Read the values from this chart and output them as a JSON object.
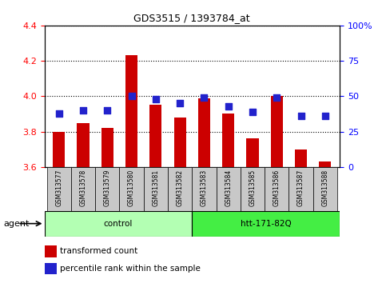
{
  "title": "GDS3515 / 1393784_at",
  "samples": [
    "GSM313577",
    "GSM313578",
    "GSM313579",
    "GSM313580",
    "GSM313581",
    "GSM313582",
    "GSM313583",
    "GSM313584",
    "GSM313585",
    "GSM313586",
    "GSM313587",
    "GSM313588"
  ],
  "transformed_count": [
    3.8,
    3.85,
    3.82,
    4.23,
    3.95,
    3.88,
    3.99,
    3.9,
    3.76,
    4.0,
    3.7,
    3.63
  ],
  "percentile_rank": [
    38,
    40,
    40,
    50,
    48,
    45,
    49,
    43,
    39,
    49,
    36,
    36
  ],
  "ylim_left": [
    3.6,
    4.4
  ],
  "ylim_right": [
    0,
    100
  ],
  "yticks_left": [
    3.6,
    3.8,
    4.0,
    4.2,
    4.4
  ],
  "yticks_right": [
    0,
    25,
    50,
    75,
    100
  ],
  "bar_color": "#cc0000",
  "dot_color": "#2222cc",
  "bg_plot": "#ffffff",
  "sample_box_bg": "#c8c8c8",
  "control_bg": "#b3ffb3",
  "htt_bg": "#44ee44",
  "agent_label": "agent",
  "control_label": "control",
  "htt_label": "htt-171-82Q",
  "legend_red": "transformed count",
  "legend_blue": "percentile rank within the sample",
  "bar_width": 0.5,
  "base_value": 3.6,
  "dot_size": 30,
  "n_control": 6,
  "n_total": 12
}
